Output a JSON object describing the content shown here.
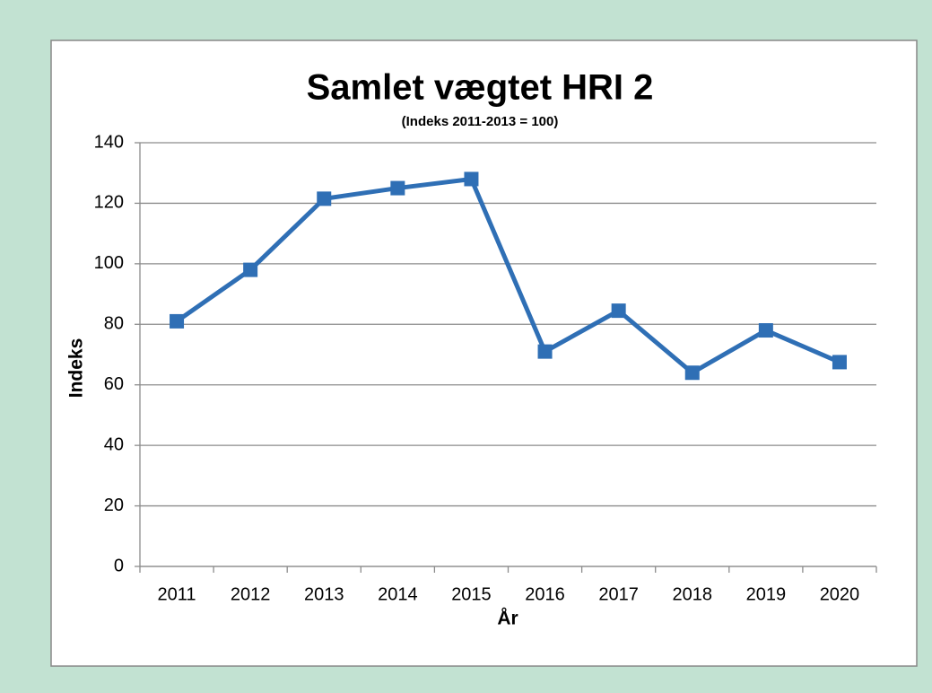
{
  "chart_data": {
    "type": "line",
    "title": "Samlet vægtet HRI 2",
    "subtitle": "(Indeks 2011-2013 = 100)",
    "x_label": "År",
    "y_label": "Indeks",
    "categories": [
      "2011",
      "2012",
      "2013",
      "2014",
      "2015",
      "2016",
      "2017",
      "2018",
      "2019",
      "2020"
    ],
    "series": [
      {
        "name": "Samlet vægtet HRI 2",
        "color": "#2f6fb5",
        "values": [
          81,
          98,
          121.5,
          125,
          128,
          71,
          84.5,
          64,
          78,
          67.5
        ]
      }
    ],
    "ylim": [
      0,
      140
    ],
    "yticks": [
      0,
      20,
      40,
      60,
      80,
      100,
      120,
      140
    ],
    "grid": true,
    "legend": false
  }
}
